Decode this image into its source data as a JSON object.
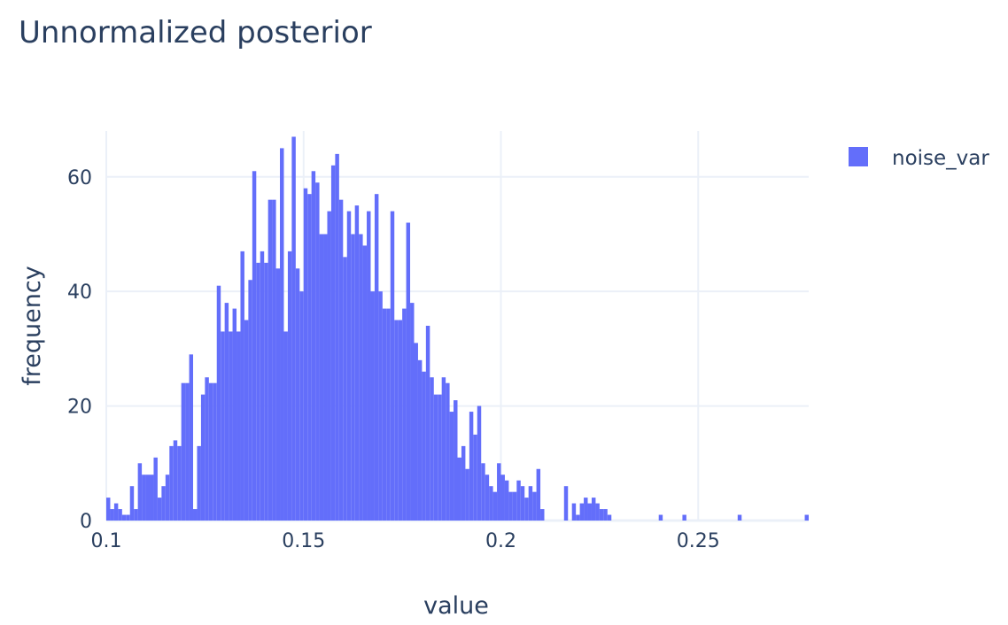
{
  "chart_data": {
    "type": "bar",
    "subtype": "histogram",
    "title": "Unnormalized posterior",
    "xlabel": "value",
    "ylabel": "frequency",
    "xlim": [
      0.1,
      0.278
    ],
    "ylim": [
      0,
      68
    ],
    "xticks": [
      0.1,
      0.15,
      0.2,
      0.25
    ],
    "xtick_labels": [
      "0.1",
      "0.15",
      "0.2",
      "0.25"
    ],
    "yticks": [
      0,
      20,
      40,
      60
    ],
    "ytick_labels": [
      "0",
      "20",
      "40",
      "60"
    ],
    "grid": true,
    "legend_position": "top-right",
    "bin_start": 0.1,
    "bin_width": 0.001,
    "series": [
      {
        "name": "noise_var",
        "color": "#636efa",
        "values": [
          4,
          2,
          3,
          2,
          1,
          1,
          6,
          2,
          10,
          8,
          8,
          8,
          11,
          4,
          6,
          8,
          13,
          14,
          13,
          24,
          24,
          29,
          2,
          13,
          22,
          25,
          24,
          24,
          41,
          33,
          38,
          33,
          37,
          33,
          47,
          35,
          42,
          61,
          45,
          47,
          45,
          56,
          56,
          44,
          65,
          33,
          47,
          67,
          44,
          40,
          58,
          57,
          61,
          59,
          50,
          50,
          54,
          62,
          64,
          56,
          46,
          54,
          50,
          55,
          50,
          48,
          54,
          40,
          57,
          40,
          37,
          37,
          54,
          35,
          35,
          37,
          52,
          38,
          31,
          28,
          26,
          34,
          25,
          22,
          22,
          25,
          24,
          19,
          21,
          11,
          13,
          9,
          19,
          15,
          20,
          10,
          8,
          6,
          5,
          10,
          8,
          7,
          5,
          5,
          7,
          6,
          4,
          6,
          5,
          9,
          2,
          0,
          0,
          0,
          0,
          0,
          6,
          0,
          3,
          1,
          3,
          4,
          3,
          4,
          3,
          2,
          2,
          1,
          0,
          0,
          0,
          0,
          0,
          0,
          0,
          0,
          0,
          0,
          0,
          0,
          1,
          0,
          0,
          0,
          0,
          0,
          1,
          0,
          0,
          0,
          0,
          0,
          0,
          0,
          0,
          0,
          0,
          0,
          0,
          0,
          1,
          0,
          0,
          0,
          0,
          0,
          0,
          0,
          0,
          0,
          0,
          0,
          0,
          0,
          0,
          0,
          0,
          1
        ]
      }
    ]
  }
}
